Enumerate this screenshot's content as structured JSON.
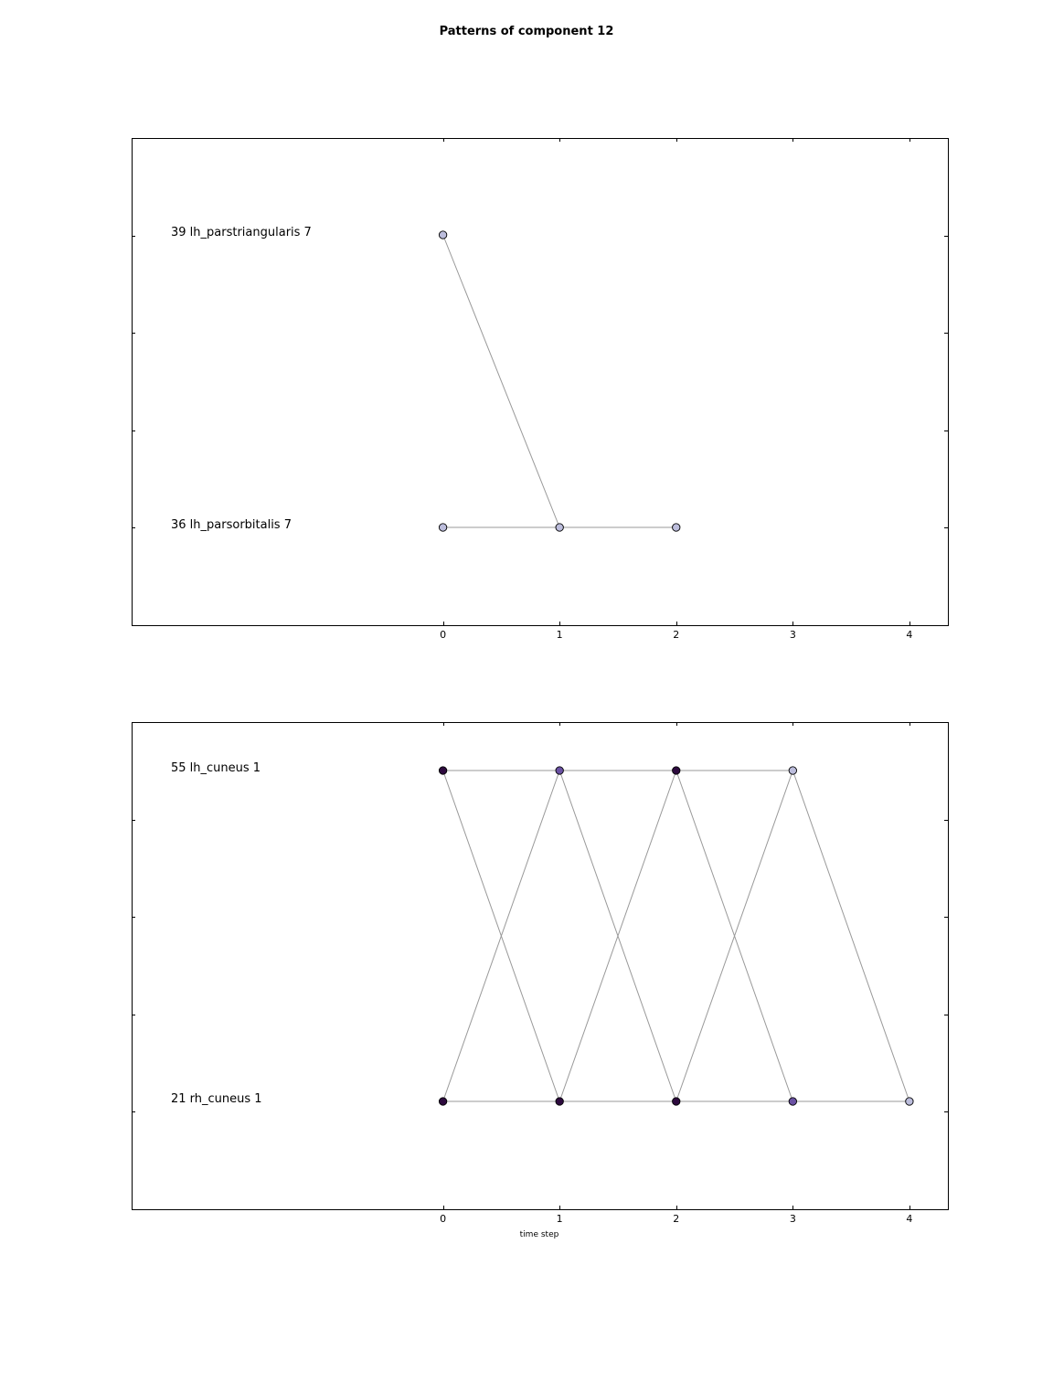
{
  "title": "Patterns of component 12",
  "chart_data": [
    {
      "type": "line",
      "title": "",
      "xlabel": "",
      "ylabel": "",
      "xlim": [
        -2.67,
        4.33
      ],
      "x_ticks": [
        0,
        1,
        2,
        3,
        4
      ],
      "grid": false,
      "rows": [
        {
          "label": "39 lh_parstriangularis 7",
          "id": "39",
          "value": 7
        },
        {
          "label": "36 lh_parsorbitalis 7",
          "id": "36",
          "value": 7
        }
      ],
      "points": [
        {
          "t": 0,
          "row": 0,
          "color": "#bcbddc"
        },
        {
          "t": 0,
          "row": 1,
          "color": "#bcbddc"
        },
        {
          "t": 1,
          "row": 1,
          "color": "#bcbddc"
        },
        {
          "t": 2,
          "row": 1,
          "color": "#bcbddc"
        }
      ],
      "edges": [
        {
          "from": [
            0,
            0
          ],
          "to": [
            1,
            1
          ]
        },
        {
          "from": [
            0,
            1
          ],
          "to": [
            1,
            1
          ]
        },
        {
          "from": [
            1,
            1
          ],
          "to": [
            2,
            1
          ]
        }
      ]
    },
    {
      "type": "line",
      "title": "",
      "xlabel": "time step",
      "ylabel": "",
      "xlim": [
        -2.67,
        4.33
      ],
      "x_ticks": [
        0,
        1,
        2,
        3,
        4
      ],
      "grid": false,
      "rows": [
        {
          "label": "55 lh_cuneus 1",
          "id": "55",
          "value": 1
        },
        {
          "label": "21 rh_cuneus 1",
          "id": "21",
          "value": 1
        }
      ],
      "points": [
        {
          "t": 0,
          "row": 0,
          "color": "#2d0a3e"
        },
        {
          "t": 1,
          "row": 0,
          "color": "#6a51a3"
        },
        {
          "t": 2,
          "row": 0,
          "color": "#2d0a3e"
        },
        {
          "t": 3,
          "row": 0,
          "color": "#bcbddc"
        },
        {
          "t": 0,
          "row": 1,
          "color": "#2d0a3e"
        },
        {
          "t": 1,
          "row": 1,
          "color": "#2d0a3e"
        },
        {
          "t": 2,
          "row": 1,
          "color": "#2d0a3e"
        },
        {
          "t": 3,
          "row": 1,
          "color": "#6a51a3"
        },
        {
          "t": 4,
          "row": 1,
          "color": "#bcbddc"
        }
      ],
      "edges": [
        {
          "from": [
            0,
            0
          ],
          "to": [
            1,
            0
          ]
        },
        {
          "from": [
            1,
            0
          ],
          "to": [
            2,
            0
          ]
        },
        {
          "from": [
            2,
            0
          ],
          "to": [
            3,
            0
          ]
        },
        {
          "from": [
            0,
            1
          ],
          "to": [
            1,
            1
          ]
        },
        {
          "from": [
            1,
            1
          ],
          "to": [
            2,
            1
          ]
        },
        {
          "from": [
            2,
            1
          ],
          "to": [
            3,
            1
          ]
        },
        {
          "from": [
            3,
            1
          ],
          "to": [
            4,
            1
          ]
        },
        {
          "from": [
            0,
            0
          ],
          "to": [
            1,
            1
          ]
        },
        {
          "from": [
            0,
            1
          ],
          "to": [
            1,
            0
          ]
        },
        {
          "from": [
            1,
            0
          ],
          "to": [
            2,
            1
          ]
        },
        {
          "from": [
            1,
            1
          ],
          "to": [
            2,
            0
          ]
        },
        {
          "from": [
            2,
            0
          ],
          "to": [
            3,
            1
          ]
        },
        {
          "from": [
            2,
            1
          ],
          "to": [
            3,
            0
          ]
        },
        {
          "from": [
            3,
            0
          ],
          "to": [
            4,
            1
          ]
        }
      ]
    }
  ]
}
